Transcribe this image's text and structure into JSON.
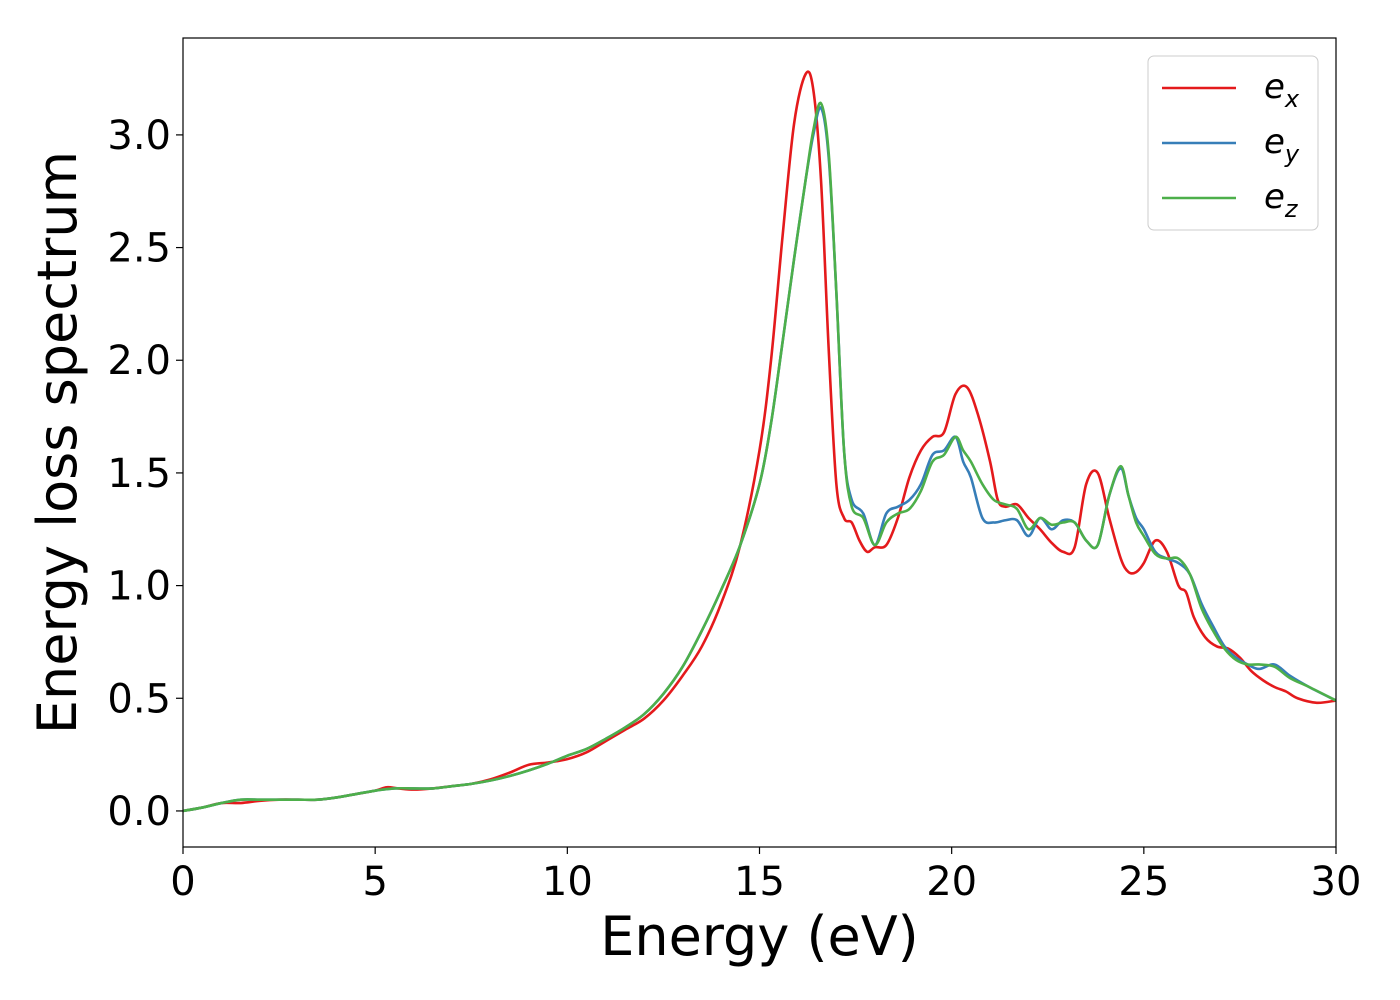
{
  "chart_data": {
    "type": "line",
    "title": "",
    "xlabel": "Energy (eV)",
    "ylabel": "Energy loss spectrum",
    "xlim": [
      0,
      30
    ],
    "ylim": [
      -0.16,
      3.43
    ],
    "xticks": [
      0,
      5,
      10,
      15,
      20,
      25,
      30
    ],
    "xtick_labels": [
      "0",
      "5",
      "10",
      "15",
      "20",
      "25",
      "30"
    ],
    "yticks": [
      0.0,
      0.5,
      1.0,
      1.5,
      2.0,
      2.5,
      3.0
    ],
    "ytick_labels": [
      "0.0",
      "0.5",
      "1.0",
      "1.5",
      "2.0",
      "2.5",
      "3.0"
    ],
    "grid": false,
    "legend_position": "top-right",
    "series": [
      {
        "name": "e_x",
        "legend_base": "e",
        "legend_sub": "x",
        "color": "#e41a1c",
        "x": [
          0,
          0.5,
          1,
          1.5,
          2,
          2.5,
          3,
          3.5,
          4,
          4.5,
          5,
          5.3,
          5.6,
          6,
          6.5,
          7,
          7.5,
          8,
          8.5,
          9,
          9.5,
          10,
          10.5,
          11,
          11.5,
          12,
          12.5,
          13,
          13.5,
          14,
          14.5,
          15,
          15.3,
          15.6,
          15.9,
          16.2,
          16.4,
          16.6,
          16.8,
          17,
          17.2,
          17.4,
          17.6,
          17.8,
          18,
          18.3,
          18.6,
          18.9,
          19.2,
          19.5,
          19.8,
          20.1,
          20.4,
          20.7,
          21,
          21.2,
          21.4,
          21.7,
          22,
          22.3,
          22.6,
          22.9,
          23.2,
          23.5,
          23.8,
          24.1,
          24.4,
          24.6,
          24.8,
          25,
          25.3,
          25.6,
          25.9,
          26.1,
          26.3,
          26.6,
          26.9,
          27.2,
          27.5,
          27.8,
          28.1,
          28.4,
          28.7,
          29,
          29.5,
          30
        ],
        "y": [
          0.0,
          0.015,
          0.035,
          0.035,
          0.045,
          0.05,
          0.05,
          0.05,
          0.06,
          0.075,
          0.09,
          0.105,
          0.1,
          0.095,
          0.1,
          0.11,
          0.12,
          0.14,
          0.17,
          0.205,
          0.215,
          0.23,
          0.26,
          0.31,
          0.36,
          0.41,
          0.49,
          0.6,
          0.73,
          0.92,
          1.18,
          1.6,
          2.0,
          2.55,
          3.05,
          3.27,
          3.2,
          2.8,
          2.05,
          1.45,
          1.3,
          1.28,
          1.2,
          1.15,
          1.17,
          1.18,
          1.3,
          1.48,
          1.6,
          1.66,
          1.68,
          1.85,
          1.88,
          1.75,
          1.55,
          1.38,
          1.35,
          1.36,
          1.3,
          1.25,
          1.19,
          1.15,
          1.17,
          1.45,
          1.5,
          1.3,
          1.12,
          1.06,
          1.06,
          1.1,
          1.2,
          1.15,
          1.0,
          0.97,
          0.86,
          0.77,
          0.73,
          0.72,
          0.68,
          0.62,
          0.58,
          0.55,
          0.53,
          0.5,
          0.48,
          0.49
        ]
      },
      {
        "name": "e_y",
        "legend_base": "e",
        "legend_sub": "y",
        "color": "#377eb8",
        "x": [
          0,
          0.5,
          1,
          1.5,
          2,
          2.5,
          3,
          3.5,
          4,
          4.5,
          5,
          5.5,
          6,
          6.5,
          7,
          7.5,
          8,
          8.5,
          9,
          9.5,
          10,
          10.5,
          11,
          11.5,
          12,
          12.5,
          13,
          13.5,
          14,
          14.5,
          15,
          15.3,
          15.6,
          15.9,
          16.2,
          16.4,
          16.6,
          16.8,
          17,
          17.2,
          17.4,
          17.7,
          18,
          18.3,
          18.6,
          18.9,
          19.2,
          19.5,
          19.8,
          20.1,
          20.3,
          20.5,
          20.8,
          21.1,
          21.4,
          21.7,
          22,
          22.3,
          22.6,
          22.9,
          23.2,
          23.5,
          23.8,
          24.1,
          24.4,
          24.6,
          24.8,
          25,
          25.3,
          25.6,
          25.9,
          26.2,
          26.5,
          26.8,
          27.1,
          27.4,
          27.7,
          28,
          28.4,
          28.8,
          29.3,
          30
        ],
        "y": [
          0.0,
          0.015,
          0.035,
          0.05,
          0.05,
          0.05,
          0.05,
          0.05,
          0.06,
          0.075,
          0.09,
          0.1,
          0.1,
          0.1,
          0.11,
          0.12,
          0.135,
          0.155,
          0.18,
          0.21,
          0.245,
          0.275,
          0.32,
          0.37,
          0.43,
          0.52,
          0.64,
          0.8,
          0.98,
          1.18,
          1.45,
          1.72,
          2.08,
          2.45,
          2.8,
          3.0,
          3.12,
          2.9,
          2.3,
          1.6,
          1.38,
          1.32,
          1.18,
          1.32,
          1.35,
          1.38,
          1.45,
          1.58,
          1.6,
          1.66,
          1.55,
          1.48,
          1.3,
          1.28,
          1.29,
          1.29,
          1.22,
          1.3,
          1.25,
          1.29,
          1.28,
          1.2,
          1.18,
          1.4,
          1.52,
          1.4,
          1.3,
          1.25,
          1.15,
          1.12,
          1.1,
          1.05,
          0.92,
          0.82,
          0.73,
          0.68,
          0.65,
          0.63,
          0.65,
          0.6,
          0.55,
          0.49
        ]
      },
      {
        "name": "e_z",
        "legend_base": "e",
        "legend_sub": "z",
        "color": "#4daf4a",
        "x": [
          0,
          0.5,
          1,
          1.5,
          2,
          2.5,
          3,
          3.5,
          4,
          4.5,
          5,
          5.5,
          6,
          6.5,
          7,
          7.5,
          8,
          8.5,
          9,
          9.5,
          10,
          10.5,
          11,
          11.5,
          12,
          12.5,
          13,
          13.5,
          14,
          14.5,
          15,
          15.3,
          15.6,
          15.9,
          16.2,
          16.4,
          16.6,
          16.8,
          17,
          17.2,
          17.4,
          17.7,
          18,
          18.3,
          18.6,
          18.9,
          19.2,
          19.5,
          19.8,
          20.1,
          20.3,
          20.5,
          20.8,
          21.1,
          21.4,
          21.7,
          22,
          22.3,
          22.6,
          22.9,
          23.2,
          23.5,
          23.8,
          24.1,
          24.4,
          24.6,
          24.8,
          25,
          25.3,
          25.6,
          25.9,
          26.2,
          26.5,
          26.8,
          27.1,
          27.4,
          27.7,
          28,
          28.4,
          28.8,
          29.3,
          30
        ],
        "y": [
          0.0,
          0.015,
          0.035,
          0.05,
          0.05,
          0.05,
          0.05,
          0.05,
          0.06,
          0.075,
          0.09,
          0.1,
          0.1,
          0.1,
          0.11,
          0.12,
          0.135,
          0.155,
          0.18,
          0.21,
          0.245,
          0.275,
          0.32,
          0.37,
          0.43,
          0.52,
          0.64,
          0.8,
          0.98,
          1.18,
          1.45,
          1.72,
          2.08,
          2.45,
          2.8,
          3.02,
          3.14,
          2.92,
          2.3,
          1.6,
          1.35,
          1.3,
          1.18,
          1.28,
          1.32,
          1.34,
          1.42,
          1.55,
          1.58,
          1.66,
          1.6,
          1.55,
          1.45,
          1.38,
          1.36,
          1.34,
          1.25,
          1.3,
          1.27,
          1.28,
          1.28,
          1.2,
          1.18,
          1.4,
          1.53,
          1.4,
          1.28,
          1.22,
          1.14,
          1.12,
          1.12,
          1.05,
          0.9,
          0.8,
          0.72,
          0.67,
          0.65,
          0.65,
          0.64,
          0.59,
          0.55,
          0.49
        ]
      }
    ]
  }
}
